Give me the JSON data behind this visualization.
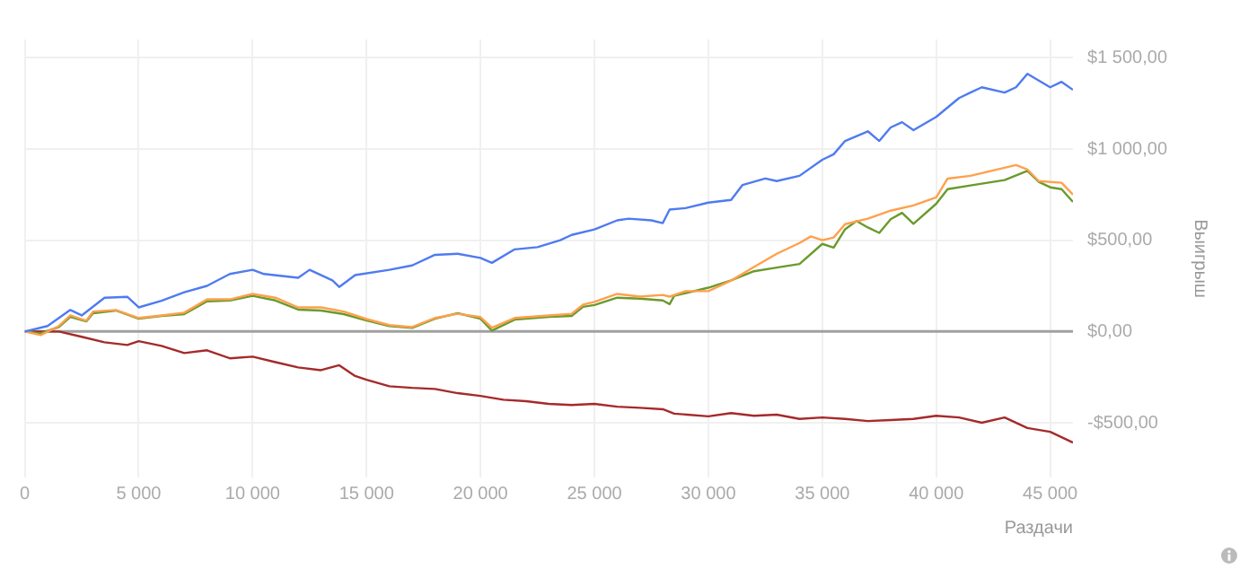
{
  "chart_data": {
    "type": "line",
    "xlabel": "Раздачи",
    "ylabel": "Выигрыш",
    "xlim": [
      0,
      46000
    ],
    "xticks": [
      0,
      {
        "value": 5000,
        "label": "5 000"
      },
      {
        "value": 10000,
        "label": "10 000"
      },
      {
        "value": 15000,
        "label": "15 000"
      },
      {
        "value": 20000,
        "label": "20 000"
      },
      {
        "value": 25000,
        "label": "25 000"
      },
      {
        "value": 30000,
        "label": "30 000"
      },
      {
        "value": 35000,
        "label": "35 000"
      },
      {
        "value": 40000,
        "label": "40 000"
      },
      {
        "value": 45000,
        "label": "45 000"
      }
    ],
    "ylim": [
      -800,
      1600
    ],
    "yticks": [
      {
        "value": -500,
        "label": "-$500,00"
      },
      {
        "value": 0,
        "label": "$0,00"
      },
      {
        "value": 500,
        "label": "$500,00"
      },
      {
        "value": 1000,
        "label": "$1 000,00"
      },
      {
        "value": 1500,
        "label": "$1 500,00"
      }
    ],
    "grid": true,
    "legend": false,
    "marker": "none",
    "line_style": "solid",
    "ref_lines": [
      {
        "axis": "y",
        "value": 0,
        "label": null,
        "color": "#a0a0a0"
      }
    ],
    "series": [
      {
        "color": "#4f7bf0",
        "x": [
          0,
          1000,
          2000,
          2500,
          3500,
          4500,
          5000,
          6000,
          7000,
          8000,
          9000,
          10000,
          10500,
          12000,
          12500,
          13500,
          13800,
          14500,
          16000,
          17000,
          18000,
          19000,
          20000,
          20500,
          21500,
          22500,
          23500,
          24000,
          25000,
          26000,
          26500,
          27500,
          28000,
          28300,
          29000,
          30000,
          31000,
          31500,
          32500,
          33000,
          34000,
          35000,
          35500,
          36000,
          37000,
          37500,
          38000,
          38500,
          39000,
          40000,
          41000,
          41500,
          42000,
          43000,
          43500,
          44000,
          45000,
          45500,
          46000
        ],
        "values": [
          0,
          30,
          118,
          88,
          185,
          190,
          132,
          168,
          215,
          250,
          315,
          338,
          315,
          294,
          338,
          280,
          244,
          309,
          338,
          362,
          420,
          426,
          403,
          376,
          450,
          462,
          500,
          529,
          559,
          609,
          618,
          609,
          594,
          668,
          676,
          706,
          721,
          803,
          838,
          824,
          853,
          941,
          971,
          1044,
          1097,
          1044,
          1118,
          1147,
          1103,
          1176,
          1279,
          1309,
          1338,
          1309,
          1338,
          1412,
          1338,
          1368,
          1324
        ]
      },
      {
        "color": "#ffa04d",
        "x": [
          0,
          700,
          1500,
          2000,
          2700,
          3000,
          4000,
          5000,
          6000,
          7000,
          8000,
          9000,
          10000,
          11000,
          12000,
          13000,
          14000,
          15000,
          16000,
          17000,
          18000,
          19000,
          20000,
          20500,
          21500,
          23000,
          24000,
          24500,
          25000,
          26000,
          27000,
          28000,
          28300,
          29000,
          30000,
          31000,
          32000,
          33000,
          34000,
          34500,
          35000,
          35500,
          36000,
          37000,
          38000,
          39000,
          40000,
          40500,
          41500,
          42000,
          43000,
          43500,
          44000,
          44500,
          45500,
          46000
        ],
        "values": [
          0,
          -20,
          30,
          88,
          59,
          109,
          118,
          74,
          88,
          103,
          176,
          176,
          206,
          185,
          132,
          132,
          109,
          68,
          35,
          24,
          74,
          97,
          79,
          21,
          74,
          88,
          97,
          147,
          162,
          206,
          191,
          200,
          191,
          221,
          221,
          279,
          353,
          426,
          485,
          521,
          500,
          515,
          588,
          618,
          662,
          691,
          735,
          838,
          853,
          868,
          897,
          912,
          888,
          824,
          815,
          750
        ]
      },
      {
        "color": "#6a9a2c",
        "x": [
          0,
          700,
          1500,
          2000,
          2700,
          3000,
          4000,
          5000,
          6000,
          7000,
          8000,
          9000,
          10000,
          11000,
          12000,
          13000,
          14000,
          15000,
          16000,
          17000,
          18000,
          19000,
          20000,
          20500,
          21500,
          23000,
          24000,
          24500,
          25000,
          26000,
          27000,
          28000,
          28300,
          28500,
          30000,
          31000,
          32000,
          33000,
          34000,
          35000,
          35500,
          36000,
          36500,
          37000,
          37500,
          38000,
          38500,
          39000,
          40000,
          40500,
          41500,
          42000,
          43000,
          44000,
          44500,
          45000,
          45500,
          46000
        ],
        "values": [
          0,
          -10,
          25,
          80,
          55,
          100,
          115,
          70,
          85,
          95,
          165,
          170,
          195,
          170,
          120,
          115,
          95,
          60,
          30,
          20,
          70,
          100,
          70,
          5,
          65,
          80,
          85,
          135,
          145,
          185,
          180,
          170,
          150,
          195,
          240,
          280,
          330,
          350,
          370,
          480,
          460,
          560,
          605,
          570,
          540,
          615,
          650,
          590,
          700,
          780,
          800,
          810,
          830,
          880,
          820,
          790,
          780,
          710
        ]
      },
      {
        "color": "#a52a2a",
        "x": [
          0,
          1500,
          2500,
          3500,
          4500,
          5000,
          6000,
          7000,
          8000,
          9000,
          10000,
          11000,
          12000,
          13000,
          13800,
          14500,
          15000,
          16000,
          17000,
          18000,
          19000,
          20000,
          21000,
          22000,
          23000,
          24000,
          25000,
          26000,
          27000,
          28000,
          28500,
          30000,
          31000,
          32000,
          33000,
          34000,
          35000,
          36000,
          37000,
          38000,
          39000,
          40000,
          41000,
          42000,
          43000,
          44000,
          45000,
          46000
        ],
        "values": [
          0,
          0,
          -29,
          -59,
          -74,
          -53,
          -79,
          -118,
          -103,
          -147,
          -138,
          -168,
          -197,
          -212,
          -185,
          -244,
          -265,
          -300,
          -309,
          -315,
          -338,
          -353,
          -374,
          -382,
          -397,
          -403,
          -397,
          -412,
          -418,
          -426,
          -450,
          -465,
          -447,
          -462,
          -456,
          -479,
          -471,
          -479,
          -491,
          -485,
          -479,
          -462,
          -471,
          -500,
          -471,
          -529,
          -550,
          -609
        ]
      }
    ]
  }
}
